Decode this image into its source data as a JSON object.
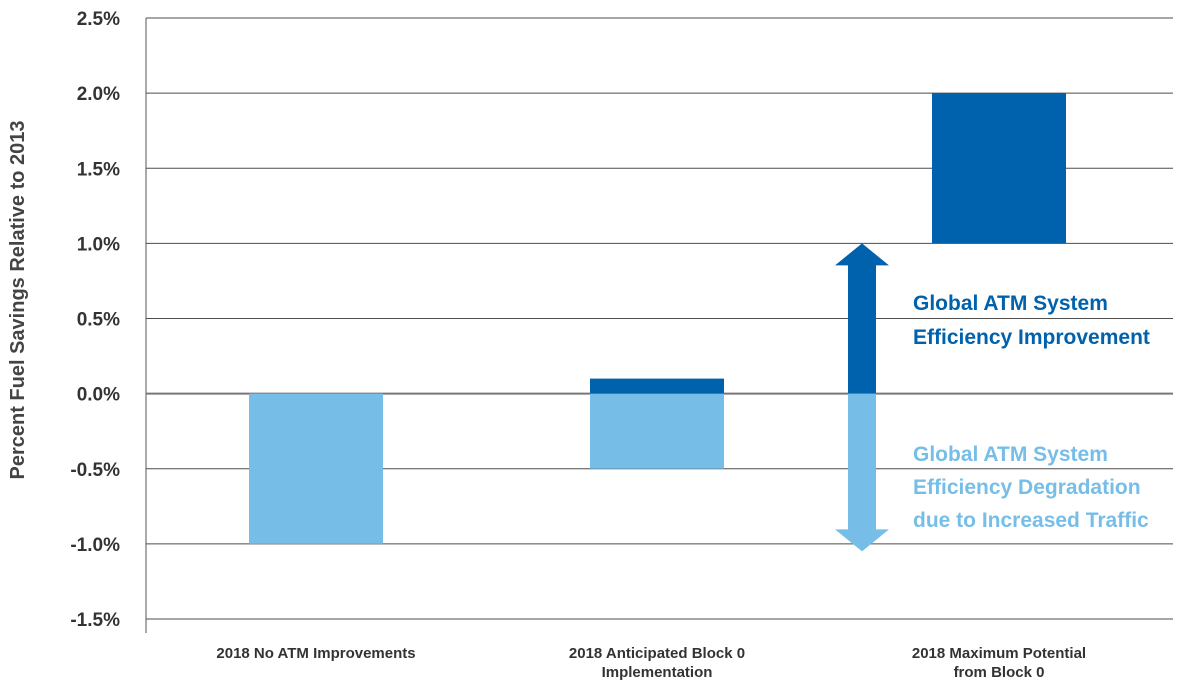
{
  "chart_data": {
    "type": "bar",
    "stacked": true,
    "ylabel": "Percent Fuel Savings Relative to 2013",
    "ylim": [
      -1.5,
      2.5
    ],
    "ytick_step": 0.5,
    "yticks": [
      "2.5%",
      "2.0%",
      "1.5%",
      "1.0%",
      "0.5%",
      "0.0%",
      "-0.5%",
      "-1.0%",
      "-1.5%"
    ],
    "grid": true,
    "categories": [
      [
        "2018 No ATM Improvements"
      ],
      [
        "2018 Anticipated Block 0",
        "Implementation"
      ],
      [
        "2018 Maximum Potential",
        "from Block 0"
      ]
    ],
    "bars": [
      {
        "degradation": [
          -1.0,
          0.0
        ],
        "improvement": null
      },
      {
        "degradation": [
          -0.5,
          0.0
        ],
        "improvement": [
          0.0,
          0.1
        ]
      },
      {
        "degradation": null,
        "improvement": [
          1.0,
          2.0
        ]
      }
    ],
    "annotations": {
      "improvement": [
        "Global ATM System",
        "Efficiency Improvement"
      ],
      "degradation": [
        "Global ATM System",
        "Efficiency Degradation",
        "due to Increased Traffic"
      ]
    },
    "arrow": {
      "improvement_top": 1.0,
      "degradation_bottom": -1.05
    },
    "colors": {
      "improvement": "#0062AC",
      "degradation": "#76BEE8",
      "grid": "#4d4d4d",
      "zero_line": "#777777"
    }
  }
}
